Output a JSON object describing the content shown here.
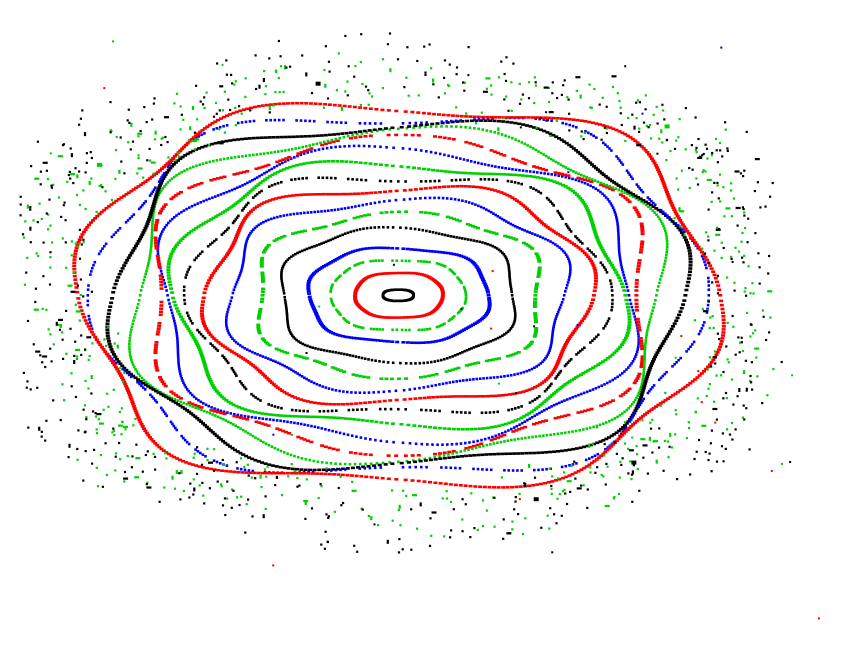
{
  "chart_data": {
    "type": "scatter",
    "title": "",
    "xlabel": "",
    "ylabel": "",
    "axes_visible": false,
    "grid": false,
    "legend": "none",
    "description_note": "",
    "colors": [
      "#ff0000",
      "#0000ff",
      "#00d000",
      "#000000"
    ],
    "series": [
      {
        "kind": "orbit",
        "color_index": 3,
        "x": [
          0.0,
          0.3,
          0.0,
          -0.3,
          0.0
        ],
        "y": [
          0.12,
          0.0,
          -0.12,
          0.0,
          0.12
        ]
      },
      {
        "kind": "orbit",
        "color_index": 0,
        "x": [
          0.0,
          0.85,
          0.0,
          -0.85,
          0.0
        ],
        "y": [
          0.48,
          0.0,
          -0.48,
          0.0,
          0.48
        ]
      },
      {
        "kind": "orbit",
        "color_index": 2,
        "x": [
          0.0,
          1.3,
          0.0,
          -1.3,
          0.0
        ],
        "y": [
          0.75,
          0.0,
          -0.75,
          0.0,
          0.75
        ]
      },
      {
        "kind": "orbit",
        "color_index": 1,
        "x": [
          0.0,
          1.75,
          0.0,
          -1.75,
          0.0
        ],
        "y": [
          1.0,
          0.0,
          -1.0,
          0.0,
          1.0
        ]
      },
      {
        "kind": "orbit",
        "color_index": 3,
        "x": [
          0.0,
          2.3,
          0.0,
          -2.3,
          0.0
        ],
        "y": [
          1.4,
          0.0,
          -1.4,
          0.0,
          1.4
        ]
      },
      {
        "kind": "orbit",
        "color_index": 2,
        "x": [
          0.0,
          2.8,
          0.0,
          -2.8,
          0.0
        ],
        "y": [
          1.7,
          0.0,
          -1.7,
          0.0,
          1.7
        ]
      },
      {
        "kind": "orbit",
        "color_index": 1,
        "x": [
          0.0,
          3.3,
          0.0,
          -3.3,
          0.0
        ],
        "y": [
          2.0,
          0.0,
          -2.0,
          0.0,
          2.0
        ]
      },
      {
        "kind": "orbit",
        "color_index": 0,
        "x": [
          0.0,
          3.7,
          0.0,
          -3.7,
          0.0
        ],
        "y": [
          2.3,
          0.0,
          -2.3,
          0.0,
          2.3
        ]
      },
      {
        "kind": "orbit",
        "color_index": 3,
        "x": [
          0.0,
          4.0,
          0.0,
          -4.0,
          0.0
        ],
        "y": [
          2.55,
          0.0,
          -2.55,
          0.0,
          2.55
        ]
      },
      {
        "kind": "orbit",
        "color_index": 2,
        "x": [
          0.0,
          4.35,
          0.0,
          -4.35,
          0.0
        ],
        "y": [
          2.8,
          0.0,
          -2.8,
          0.0,
          2.8
        ]
      },
      {
        "kind": "orbit",
        "color_index": 1,
        "x": [
          0.0,
          4.65,
          0.0,
          -4.65,
          0.0
        ],
        "y": [
          3.05,
          0.0,
          -3.05,
          0.0,
          3.05
        ]
      },
      {
        "kind": "orbit",
        "color_index": 0,
        "x": [
          0.0,
          4.9,
          0.0,
          -4.9,
          0.0
        ],
        "y": [
          3.25,
          0.0,
          -3.25,
          0.0,
          3.25
        ]
      },
      {
        "kind": "orbit",
        "color_index": 2,
        "x": [
          0.0,
          5.2,
          0.0,
          -5.2,
          0.0
        ],
        "y": [
          3.45,
          0.0,
          -3.45,
          0.0,
          3.45
        ]
      },
      {
        "kind": "orbit",
        "color_index": 3,
        "x": [
          0.0,
          5.5,
          0.0,
          -5.5,
          0.0
        ],
        "y": [
          3.65,
          0.0,
          -3.65,
          0.0,
          3.65
        ]
      },
      {
        "kind": "orbit",
        "color_index": 1,
        "x": [
          0.0,
          5.8,
          0.0,
          -5.8,
          0.0
        ],
        "y": [
          3.85,
          0.0,
          -3.85,
          0.0,
          3.85
        ]
      },
      {
        "kind": "orbit",
        "color_index": 0,
        "x": [
          0.0,
          6.1,
          0.0,
          -6.1,
          0.0
        ],
        "y": [
          4.05,
          0.0,
          -4.05,
          0.0,
          4.05
        ]
      },
      {
        "kind": "chaotic",
        "color_index": 2,
        "x": [
          0.0,
          6.6,
          0.0,
          -6.6,
          0.0
        ],
        "y": [
          4.4,
          0.0,
          -4.4,
          0.0,
          4.4
        ]
      },
      {
        "kind": "chaotic",
        "color_index": 3,
        "x": [
          0.0,
          7.0,
          0.0,
          -7.0,
          0.0
        ],
        "y": [
          4.7,
          0.0,
          -4.7,
          0.0,
          4.7
        ]
      }
    ]
  }
}
